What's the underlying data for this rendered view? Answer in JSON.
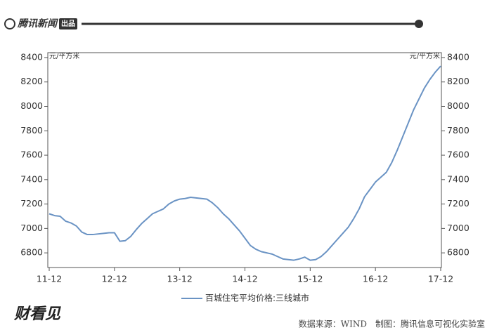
{
  "header": {
    "brand": "腾讯新闻",
    "badge": "出品"
  },
  "chart_data": {
    "type": "line",
    "ylabel": "元/平方米",
    "y2label": "元/平方米",
    "categories": [
      "11-12",
      null,
      null,
      null,
      null,
      null,
      null,
      null,
      null,
      null,
      null,
      null,
      "12-12",
      null,
      null,
      null,
      null,
      null,
      null,
      null,
      null,
      null,
      null,
      null,
      "13-12",
      null,
      null,
      null,
      null,
      null,
      null,
      null,
      null,
      null,
      null,
      null,
      "14-12",
      null,
      null,
      null,
      null,
      null,
      null,
      null,
      null,
      null,
      null,
      null,
      "15-12",
      null,
      null,
      null,
      null,
      null,
      null,
      null,
      null,
      null,
      null,
      null,
      "16-12",
      null,
      null,
      null,
      null,
      null,
      null,
      null,
      null,
      null,
      null,
      null,
      "17-12"
    ],
    "series": [
      {
        "name": "百城住宅平均价格:三线城市",
        "color": "#6a93c4",
        "values": [
          7120,
          7105,
          7100,
          7060,
          7045,
          7020,
          6970,
          6950,
          6950,
          6955,
          6960,
          6965,
          6965,
          6895,
          6900,
          6935,
          6990,
          7040,
          7080,
          7120,
          7140,
          7160,
          7200,
          7225,
          7240,
          7245,
          7255,
          7250,
          7245,
          7240,
          7210,
          7170,
          7120,
          7080,
          7030,
          6980,
          6920,
          6860,
          6830,
          6810,
          6800,
          6790,
          6770,
          6750,
          6745,
          6740,
          6750,
          6765,
          6740,
          6745,
          6770,
          6810,
          6860,
          6910,
          6960,
          7010,
          7080,
          7160,
          7260,
          7320,
          7380,
          7420,
          7460,
          7540,
          7640,
          7750,
          7860,
          7970,
          8060,
          8150,
          8220,
          8280,
          8330
        ]
      }
    ],
    "ylim": [
      6680,
      8440
    ],
    "yticks": [
      6800,
      7000,
      7200,
      7400,
      7600,
      7800,
      8000,
      8200,
      8400
    ],
    "y2lim": [
      6680,
      8440
    ],
    "y2ticks": [
      6800,
      7000,
      7200,
      7400,
      7600,
      7800,
      8000,
      8200,
      8400
    ],
    "legend": "bottom",
    "grid": false
  },
  "footer": {
    "logo": "财看见",
    "source": "数据来源：WIND　制图：腾讯信息可视化实验室"
  }
}
